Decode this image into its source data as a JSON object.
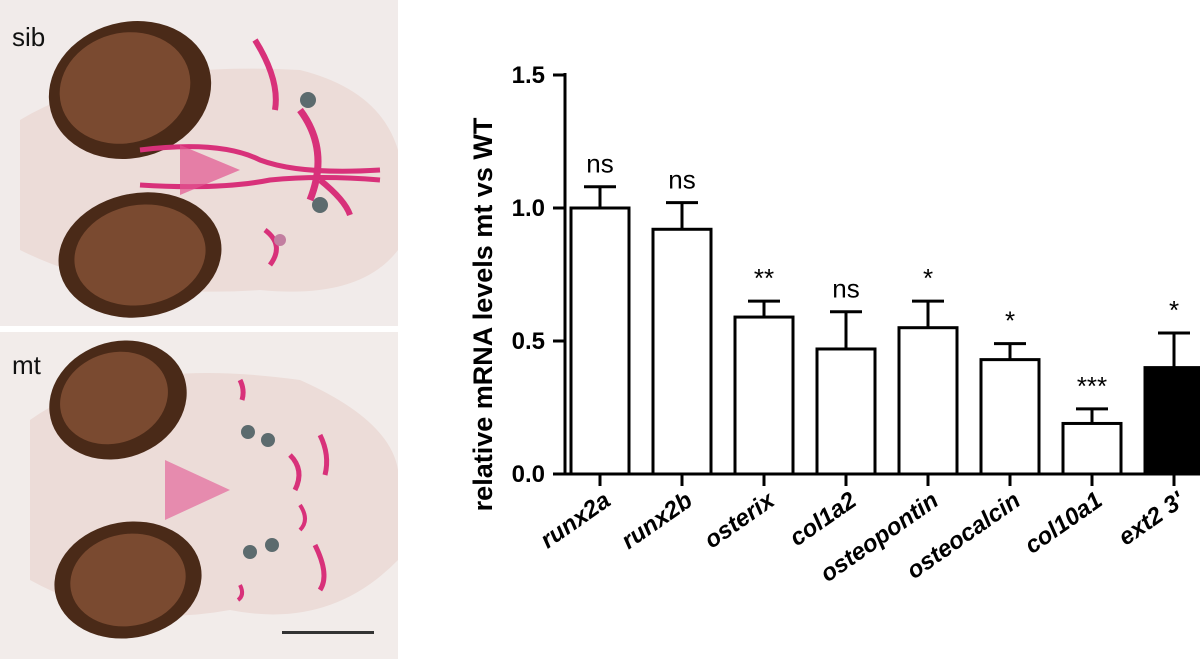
{
  "panels": [
    {
      "label": "sib"
    },
    {
      "label": "mt"
    }
  ],
  "colors": {
    "bar_default": "#ffffff",
    "bar_highlight": "#000000",
    "axis": "#000000",
    "eye": "#4a2a18",
    "cartilage": "#d8317a",
    "tissue": "#f3e9e6"
  },
  "chart_data": {
    "type": "bar",
    "title": "",
    "xlabel": "",
    "ylabel": "relative mRNA levels mt vs WT",
    "ylim": [
      0,
      1.5
    ],
    "yticks": [
      "0.0",
      "0.5",
      "1.0",
      "1.5"
    ],
    "categories": [
      "runx2a",
      "runx2b",
      "osterix",
      "col1a2",
      "osteopontin",
      "osteocalcin",
      "col10a1",
      "ext2 3'"
    ],
    "values": [
      1.0,
      0.92,
      0.59,
      0.47,
      0.55,
      0.43,
      0.19,
      0.4
    ],
    "errors": [
      0.08,
      0.1,
      0.06,
      0.14,
      0.1,
      0.06,
      0.055,
      0.13
    ],
    "significance": [
      "ns",
      "ns",
      "**",
      "ns",
      "*",
      "*",
      "***",
      "*"
    ],
    "highlight": [
      false,
      false,
      false,
      false,
      false,
      false,
      false,
      true
    ],
    "grid": false
  }
}
